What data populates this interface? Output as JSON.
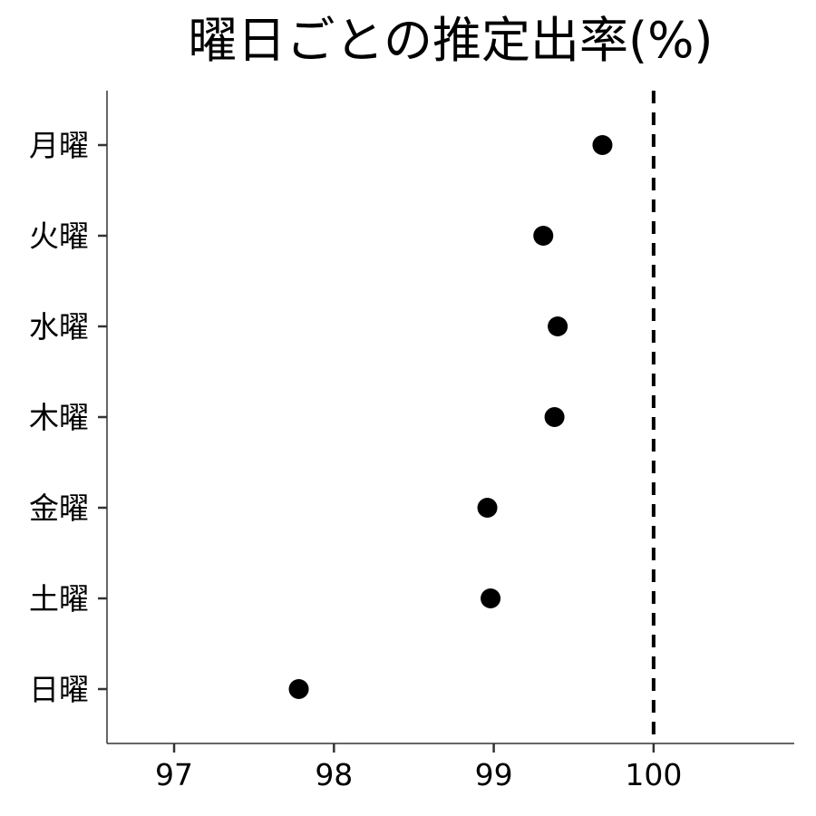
{
  "chart_data": {
    "type": "scatter",
    "title": "曜日ごとの推定出率(%)",
    "xlabel": "",
    "ylabel": "",
    "xlim": [
      96.58,
      100.88
    ],
    "x_ticks": [
      97,
      98,
      99,
      100
    ],
    "categories": [
      "月曜",
      "火曜",
      "水曜",
      "木曜",
      "金曜",
      "土曜",
      "日曜"
    ],
    "values": [
      99.68,
      99.31,
      99.4,
      99.38,
      98.96,
      98.98,
      97.78
    ],
    "reference_line": {
      "x": 100,
      "style": "dashed"
    },
    "grid": false,
    "legend": "none",
    "colors": {
      "point": "#000000",
      "axis": "#333333",
      "reference": "#000000"
    }
  }
}
